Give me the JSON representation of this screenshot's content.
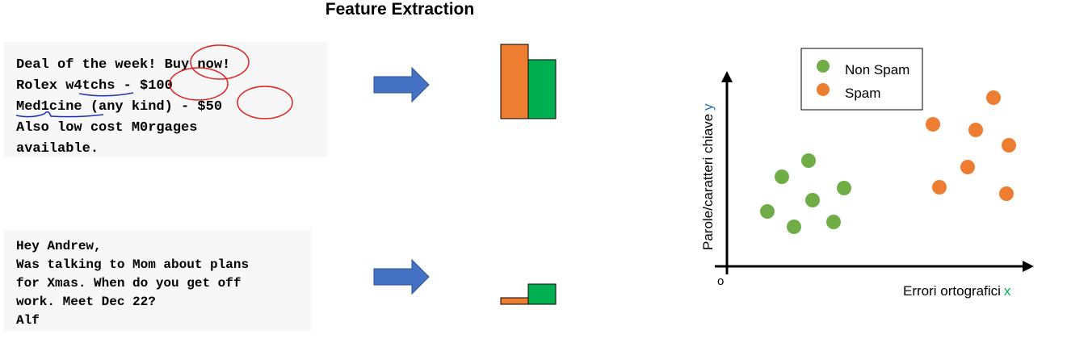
{
  "title": "Feature Extraction",
  "spam_email": {
    "lines": [
      "Deal of the week! Buy now!",
      "Rolex w4tchs - $100",
      "Med1cine (any kind) - $50",
      "Also low cost M0rgages",
      "available."
    ]
  },
  "ham_email": {
    "lines": [
      "Hey Andrew,",
      "Was talking to Mom about plans",
      "for Xmas. When do you get off",
      "work. Meet Dec 22?",
      "Alf"
    ]
  },
  "plot": {
    "legend": [
      "Non Spam",
      "Spam"
    ],
    "y_label": "Parole/caratteri chiave",
    "y_symbol": "y",
    "x_label": "Errori ortografici",
    "x_symbol": "x",
    "origin": "o"
  }
}
